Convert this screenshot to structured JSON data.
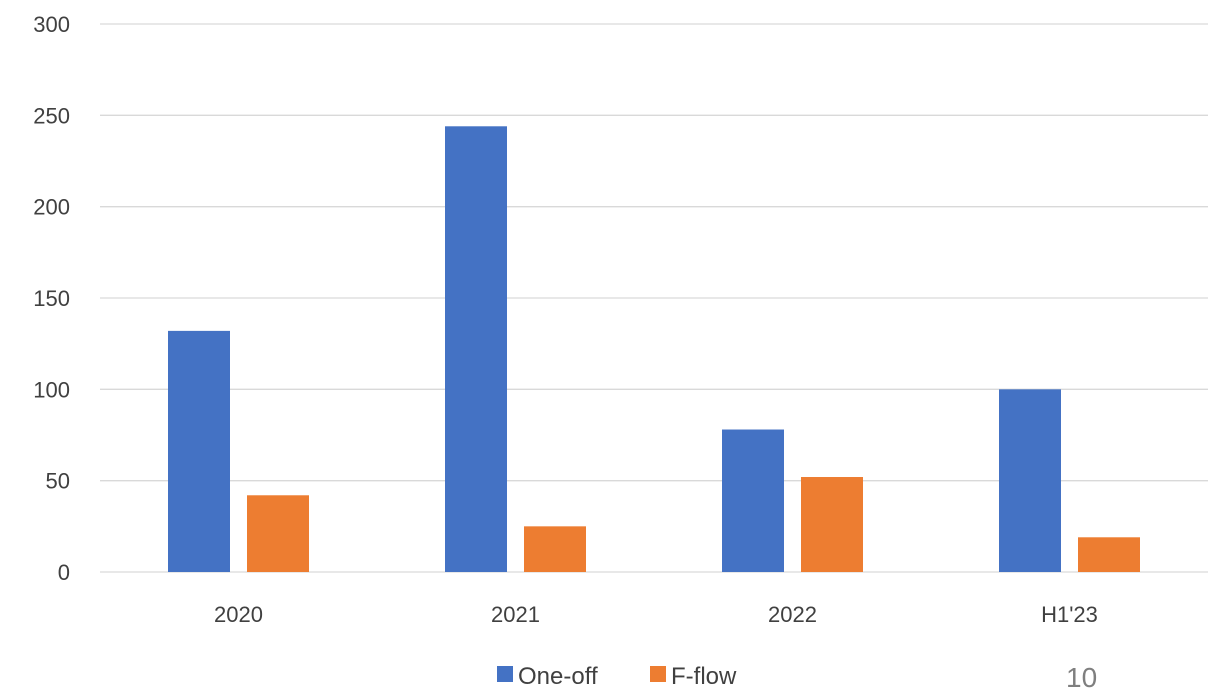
{
  "chart_data": {
    "type": "bar",
    "title": "",
    "xlabel": "",
    "ylabel": "",
    "categories": [
      "2020",
      "2021",
      "2022",
      "H1'23"
    ],
    "series": [
      {
        "name": "One-off",
        "values": [
          132,
          244,
          78,
          100
        ],
        "color": "#4472C4"
      },
      {
        "name": "F-flow",
        "values": [
          42,
          25,
          52,
          19
        ],
        "color": "#ED7D31"
      }
    ],
    "ylim": [
      0,
      300
    ],
    "yticks": [
      "0",
      "50",
      "100",
      "150",
      "200",
      "250",
      "300"
    ],
    "grid": true,
    "legend_position": "bottom-center"
  },
  "page_number": "10"
}
